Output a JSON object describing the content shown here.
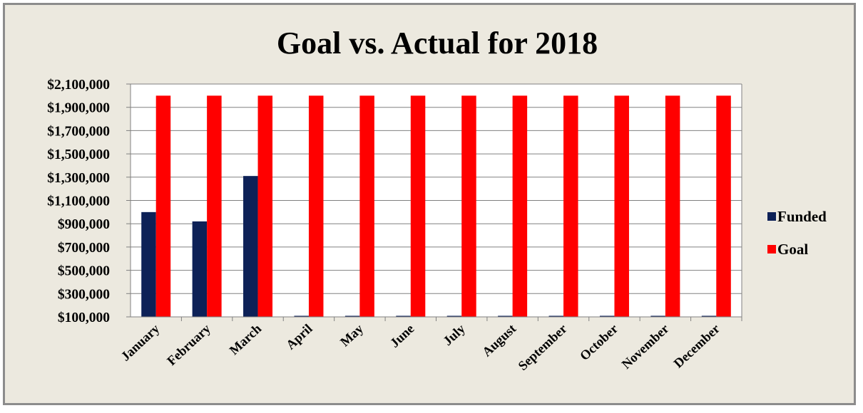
{
  "chart_data": {
    "type": "bar",
    "title": "Goal vs. Actual for 2018",
    "xlabel": "",
    "ylabel": "",
    "categories": [
      "January",
      "February",
      "March",
      "April",
      "May",
      "June",
      "July",
      "August",
      "September",
      "October",
      "November",
      "December"
    ],
    "series": [
      {
        "name": "Funded",
        "color": "#0d2157",
        "values": [
          1000000,
          920000,
          1310000,
          100000,
          100000,
          100000,
          100000,
          100000,
          100000,
          100000,
          100000,
          100000
        ]
      },
      {
        "name": "Goal",
        "color": "#ff0000",
        "values": [
          2000000,
          2000000,
          2000000,
          2000000,
          2000000,
          2000000,
          2000000,
          2000000,
          2000000,
          2000000,
          2000000,
          2000000
        ]
      }
    ],
    "ylim": [
      100000,
      2100000
    ],
    "yticks": [
      "$100,000",
      "$300,000",
      "$500,000",
      "$700,000",
      "$900,000",
      "$1,100,000",
      "$1,300,000",
      "$1,500,000",
      "$1,700,000",
      "$1,900,000",
      "$2,100,000"
    ],
    "grid": true,
    "legend_position": "right"
  }
}
